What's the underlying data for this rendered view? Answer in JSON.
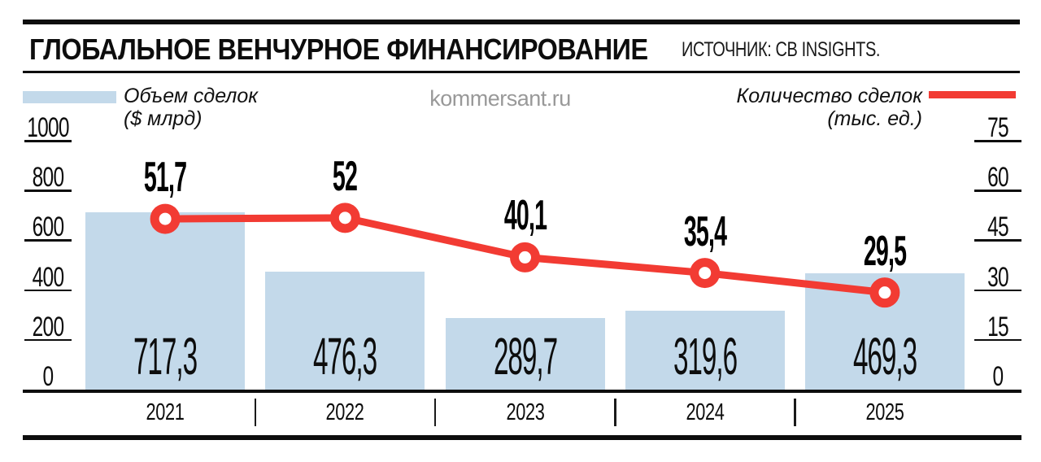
{
  "header": {
    "title": "ГЛОБАЛЬНОЕ ВЕНЧУРНОЕ ФИНАНСИРОВАНИЕ",
    "source": "ИСТОЧНИК: CB INSIGHTS."
  },
  "watermark": "kommersant.ru",
  "legend": {
    "bars": {
      "label_line1": "Объем сделок",
      "label_line2": "($ млрд)",
      "swatch_color": "#c3d9ea"
    },
    "line": {
      "label_line1": "Количество сделок",
      "label_line2": "(тыс. ед.)",
      "swatch_color": "#f23b33"
    }
  },
  "colors": {
    "bar_fill": "#c3d9ea",
    "line_red": "#f23b33",
    "text_black": "#0d0d0d",
    "watermark_gray": "#999999"
  },
  "chart_data": {
    "type": "bar+line",
    "title": "ГЛОБАЛЬНОЕ ВЕНЧУРНОЕ ФИНАНСИРОВАНИЕ",
    "categories": [
      "2021",
      "2022",
      "2023",
      "2024",
      "2025"
    ],
    "series": [
      {
        "name": "Объем сделок ($ млрд)",
        "type": "bar",
        "axis": "left",
        "values": [
          717.3,
          476.3,
          289.7,
          319.6,
          469.3
        ],
        "labels": [
          "717,3",
          "476,3",
          "289,7",
          "319,6",
          "469,3"
        ],
        "color": "#c3d9ea"
      },
      {
        "name": "Количество сделок (тыс. ед.)",
        "type": "line",
        "axis": "right",
        "values": [
          51.7,
          52,
          40.1,
          35.4,
          29.5
        ],
        "labels": [
          "51,7",
          "52",
          "40,1",
          "35,4",
          "29,5"
        ],
        "color": "#f23b33"
      }
    ],
    "axes": {
      "left": {
        "ticks": [
          1000,
          800,
          600,
          400,
          200,
          0
        ],
        "min": 0,
        "max": 1000
      },
      "right": {
        "ticks": [
          75,
          60,
          45,
          30,
          15,
          0
        ],
        "min": 0,
        "max": 75
      }
    },
    "grid": false,
    "legend_position": "top"
  }
}
